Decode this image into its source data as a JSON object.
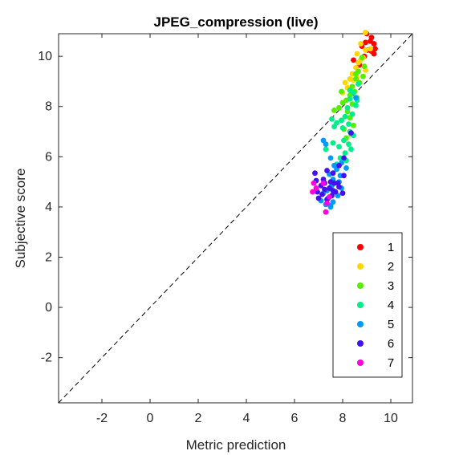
{
  "chart_data": {
    "type": "scatter",
    "title": "JPEG_compression (live)",
    "xlabel": "Metric prediction",
    "ylabel": "Subjective score",
    "xlim": [
      -3.8,
      10.9
    ],
    "ylim": [
      -3.8,
      10.9
    ],
    "xticks": [
      -2,
      0,
      2,
      4,
      6,
      8,
      10
    ],
    "yticks": [
      -2,
      0,
      2,
      4,
      6,
      8,
      10
    ],
    "xtick_labels": [
      "-2",
      "0",
      "2",
      "4",
      "6",
      "8",
      "10"
    ],
    "ytick_labels": [
      "-2",
      "0",
      "2",
      "4",
      "6",
      "8",
      "10"
    ],
    "grid": false,
    "legend_position": "bottom-right",
    "reference_line": "y = x (dashed)",
    "series": [
      {
        "name": "1",
        "color": "#ff0000",
        "points": [
          [
            9.0,
            10.9
          ],
          [
            9.2,
            10.75
          ],
          [
            9.3,
            10.5
          ],
          [
            9.35,
            10.3
          ],
          [
            9.2,
            10.2
          ],
          [
            9.05,
            10.25
          ],
          [
            8.9,
            10.0
          ],
          [
            8.8,
            10.4
          ],
          [
            8.45,
            9.85
          ],
          [
            8.7,
            9.65
          ],
          [
            9.15,
            10.6
          ],
          [
            9.3,
            10.1
          ],
          [
            8.95,
            10.55
          ]
        ]
      },
      {
        "name": "2",
        "color": "#ffd700",
        "points": [
          [
            8.95,
            10.95
          ],
          [
            8.75,
            10.5
          ],
          [
            8.95,
            10.25
          ],
          [
            8.85,
            9.95
          ],
          [
            8.65,
            9.75
          ],
          [
            8.55,
            9.55
          ],
          [
            8.4,
            9.3
          ],
          [
            8.3,
            9.1
          ],
          [
            8.1,
            8.95
          ],
          [
            8.0,
            8.55
          ],
          [
            8.2,
            8.75
          ],
          [
            8.6,
            9.15
          ],
          [
            8.95,
            9.45
          ],
          [
            8.75,
            9.85
          ],
          [
            8.45,
            9.05
          ],
          [
            9.15,
            10.3
          ],
          [
            8.6,
            10.1
          ]
        ]
      },
      {
        "name": "3",
        "color": "#55ee00",
        "points": [
          [
            8.8,
            9.95
          ],
          [
            8.9,
            9.6
          ],
          [
            8.65,
            9.4
          ],
          [
            8.55,
            9.1
          ],
          [
            8.7,
            8.95
          ],
          [
            8.4,
            8.8
          ],
          [
            8.5,
            8.6
          ],
          [
            8.3,
            8.45
          ],
          [
            8.6,
            8.35
          ],
          [
            8.15,
            8.25
          ],
          [
            8.0,
            8.15
          ],
          [
            7.85,
            7.95
          ],
          [
            7.65,
            7.85
          ],
          [
            8.2,
            7.8
          ],
          [
            8.3,
            7.55
          ],
          [
            7.95,
            7.45
          ],
          [
            8.45,
            7.25
          ],
          [
            8.05,
            7.1
          ],
          [
            8.35,
            6.9
          ],
          [
            8.15,
            6.75
          ],
          [
            7.95,
            8.6
          ],
          [
            8.55,
            9.3
          ],
          [
            8.85,
            9.2
          ],
          [
            8.4,
            8.1
          ]
        ]
      },
      {
        "name": "4",
        "color": "#00ee88",
        "points": [
          [
            8.65,
            8.9
          ],
          [
            8.45,
            8.55
          ],
          [
            8.3,
            8.3
          ],
          [
            8.55,
            8.05
          ],
          [
            8.2,
            7.95
          ],
          [
            8.4,
            7.7
          ],
          [
            8.1,
            7.6
          ],
          [
            7.95,
            7.45
          ],
          [
            8.25,
            7.3
          ],
          [
            7.75,
            7.35
          ],
          [
            8.0,
            7.15
          ],
          [
            8.3,
            7.0
          ],
          [
            8.45,
            6.85
          ],
          [
            8.05,
            6.65
          ],
          [
            8.25,
            6.5
          ],
          [
            8.35,
            6.3
          ],
          [
            7.85,
            6.4
          ],
          [
            8.1,
            6.15
          ],
          [
            7.6,
            6.55
          ],
          [
            7.3,
            6.3
          ],
          [
            7.9,
            5.95
          ],
          [
            8.15,
            5.85
          ],
          [
            7.75,
            5.7
          ],
          [
            8.3,
            8.65
          ],
          [
            7.65,
            7.2
          ],
          [
            7.55,
            7.5
          ],
          [
            8.6,
            8.25
          ]
        ]
      },
      {
        "name": "5",
        "color": "#0099ff",
        "points": [
          [
            8.55,
            8.35
          ],
          [
            7.2,
            6.65
          ],
          [
            7.3,
            6.5
          ],
          [
            7.5,
            5.95
          ],
          [
            7.65,
            5.65
          ],
          [
            7.95,
            5.75
          ],
          [
            8.15,
            5.55
          ],
          [
            7.45,
            5.3
          ],
          [
            7.6,
            5.1
          ],
          [
            7.85,
            5.0
          ],
          [
            7.55,
            4.85
          ],
          [
            7.35,
            4.65
          ],
          [
            7.2,
            4.55
          ],
          [
            7.4,
            4.35
          ],
          [
            7.6,
            4.2
          ],
          [
            7.5,
            4.05
          ],
          [
            7.3,
            4.1
          ],
          [
            7.8,
            4.45
          ],
          [
            7.95,
            4.75
          ],
          [
            7.9,
            5.25
          ],
          [
            7.5,
            4.0
          ],
          [
            7.65,
            4.6
          ],
          [
            7.1,
            4.25
          ],
          [
            7.75,
            5.5
          ]
        ]
      },
      {
        "name": "6",
        "color": "#4411ee",
        "points": [
          [
            8.35,
            6.95
          ],
          [
            8.05,
            5.95
          ],
          [
            7.85,
            5.65
          ],
          [
            8.05,
            5.25
          ],
          [
            7.6,
            5.35
          ],
          [
            7.35,
            5.45
          ],
          [
            6.85,
            5.35
          ],
          [
            6.9,
            5.05
          ],
          [
            7.1,
            4.85
          ],
          [
            7.25,
            4.7
          ],
          [
            7.45,
            4.75
          ],
          [
            7.65,
            4.95
          ],
          [
            7.85,
            4.8
          ],
          [
            7.15,
            4.5
          ],
          [
            6.95,
            4.6
          ],
          [
            7.35,
            4.3
          ],
          [
            7.55,
            4.45
          ],
          [
            7.7,
            4.6
          ],
          [
            8.0,
            4.55
          ],
          [
            7.25,
            4.95
          ],
          [
            7.0,
            4.35
          ],
          [
            7.5,
            5.0
          ],
          [
            7.8,
            4.95
          ],
          [
            7.2,
            5.1
          ],
          [
            7.6,
            4.65
          ]
        ]
      },
      {
        "name": "7",
        "color": "#ff00dd",
        "points": [
          [
            6.8,
            4.95
          ],
          [
            6.75,
            4.6
          ],
          [
            6.9,
            4.75
          ],
          [
            7.2,
            4.95
          ],
          [
            7.45,
            4.4
          ],
          [
            7.35,
            4.15
          ],
          [
            7.3,
            3.8
          ]
        ]
      }
    ]
  }
}
